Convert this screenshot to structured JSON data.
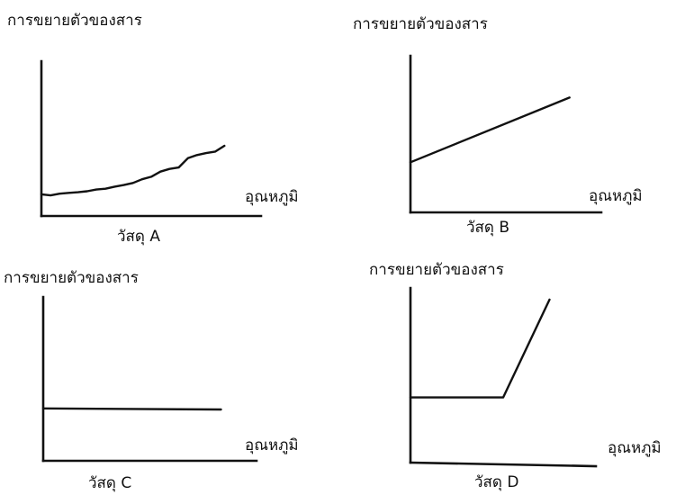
{
  "chart_data": [
    {
      "type": "line",
      "ylabel": "การขยายตัวของสาร",
      "xlabel": "อุณหภูมิ",
      "caption": "วัสดุ A",
      "series": [
        {
          "x": [
            0,
            0.5,
            1,
            1.5,
            2,
            2.5,
            3,
            3.5,
            4,
            4.5,
            5,
            5.5,
            6,
            6.5,
            7,
            7.5,
            8,
            8.5,
            9,
            9.5,
            10
          ],
          "y": [
            1.05,
            1.0,
            1.08,
            1.12,
            1.15,
            1.2,
            1.28,
            1.32,
            1.42,
            1.5,
            1.6,
            1.78,
            1.9,
            2.15,
            2.28,
            2.35,
            2.8,
            2.95,
            3.05,
            3.12,
            3.4
          ]
        }
      ],
      "xlim": [
        0,
        12
      ],
      "ylim": [
        0,
        7.5
      ]
    },
    {
      "type": "line",
      "ylabel": "การขยายตัวของสาร",
      "xlabel": "อุณหภูมิ",
      "caption": "วัสดุ B",
      "series": [
        {
          "x": [
            0,
            10
          ],
          "y": [
            2.4,
            5.5
          ]
        }
      ],
      "xlim": [
        0,
        12
      ],
      "ylim": [
        0,
        7.5
      ]
    },
    {
      "type": "line",
      "ylabel": "การขยายตัวของสาร",
      "xlabel": "อุณหภูมิ",
      "caption": "วัสดุ C",
      "series": [
        {
          "x": [
            0,
            10
          ],
          "y": [
            2.4,
            2.35
          ]
        }
      ],
      "xlim": [
        0,
        12
      ],
      "ylim": [
        0,
        7.5
      ]
    },
    {
      "type": "line",
      "ylabel": "การขยายตัวของสาร",
      "xlabel": "อุณหภูมิ",
      "caption": "วัสดุ D",
      "series": [
        {
          "x": [
            0,
            6,
            9
          ],
          "y": [
            2.8,
            2.8,
            7.0
          ]
        }
      ],
      "xlim": [
        0,
        12
      ],
      "ylim": [
        0,
        7.5
      ]
    }
  ]
}
